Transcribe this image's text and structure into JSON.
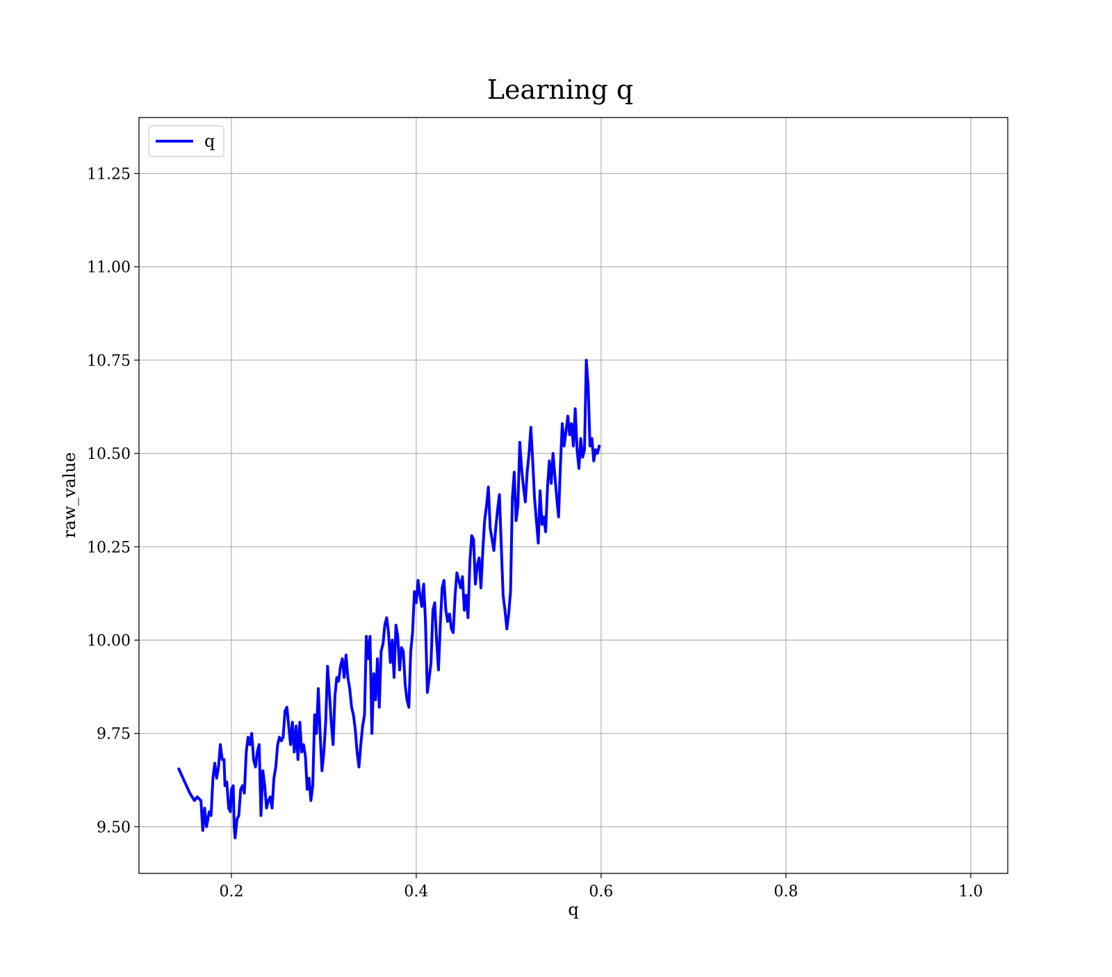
{
  "chart_data": {
    "type": "line",
    "title": "Learning q",
    "xlabel": "q",
    "ylabel": "raw_value",
    "xlim": [
      0.1,
      1.04
    ],
    "ylim": [
      9.375,
      11.4
    ],
    "x_ticks": [
      0.2,
      0.4,
      0.6,
      0.8,
      1.0
    ],
    "x_tick_labels": [
      "0.2",
      "0.4",
      "0.6",
      "0.8",
      "1.0"
    ],
    "y_ticks": [
      9.5,
      9.75,
      10.0,
      10.25,
      10.5,
      10.75,
      11.0,
      11.25
    ],
    "y_tick_labels": [
      "9.50",
      "9.75",
      "10.00",
      "10.25",
      "10.50",
      "10.75",
      "11.00",
      "11.25"
    ],
    "grid": true,
    "legend": {
      "position": "top-left",
      "entries": [
        "q"
      ]
    },
    "series": [
      {
        "name": "q",
        "color": "#0000ff",
        "points": [
          [
            0.143,
            9.655
          ],
          [
            0.155,
            9.59
          ],
          [
            0.16,
            9.57
          ],
          [
            0.163,
            9.58
          ],
          [
            0.167,
            9.57
          ],
          [
            0.169,
            9.49
          ],
          [
            0.171,
            9.55
          ],
          [
            0.173,
            9.5
          ],
          [
            0.176,
            9.54
          ],
          [
            0.178,
            9.53
          ],
          [
            0.18,
            9.63
          ],
          [
            0.182,
            9.67
          ],
          [
            0.184,
            9.63
          ],
          [
            0.186,
            9.66
          ],
          [
            0.188,
            9.72
          ],
          [
            0.19,
            9.68
          ],
          [
            0.192,
            9.68
          ],
          [
            0.193,
            9.61
          ],
          [
            0.195,
            9.62
          ],
          [
            0.197,
            9.55
          ],
          [
            0.199,
            9.54
          ],
          [
            0.2,
            9.6
          ],
          [
            0.202,
            9.61
          ],
          [
            0.203,
            9.5
          ],
          [
            0.204,
            9.47
          ],
          [
            0.206,
            9.52
          ],
          [
            0.208,
            9.53
          ],
          [
            0.21,
            9.6
          ],
          [
            0.212,
            9.61
          ],
          [
            0.214,
            9.59
          ],
          [
            0.216,
            9.7
          ],
          [
            0.218,
            9.74
          ],
          [
            0.22,
            9.72
          ],
          [
            0.222,
            9.75
          ],
          [
            0.224,
            9.68
          ],
          [
            0.226,
            9.66
          ],
          [
            0.228,
            9.7
          ],
          [
            0.23,
            9.72
          ],
          [
            0.232,
            9.53
          ],
          [
            0.234,
            9.65
          ],
          [
            0.236,
            9.61
          ],
          [
            0.238,
            9.55
          ],
          [
            0.24,
            9.57
          ],
          [
            0.242,
            9.58
          ],
          [
            0.244,
            9.55
          ],
          [
            0.246,
            9.63
          ],
          [
            0.248,
            9.66
          ],
          [
            0.25,
            9.72
          ],
          [
            0.252,
            9.74
          ],
          [
            0.254,
            9.73
          ],
          [
            0.256,
            9.74
          ],
          [
            0.258,
            9.81
          ],
          [
            0.26,
            9.82
          ],
          [
            0.262,
            9.77
          ],
          [
            0.264,
            9.72
          ],
          [
            0.266,
            9.78
          ],
          [
            0.268,
            9.7
          ],
          [
            0.27,
            9.77
          ],
          [
            0.272,
            9.68
          ],
          [
            0.274,
            9.78
          ],
          [
            0.276,
            9.7
          ],
          [
            0.278,
            9.72
          ],
          [
            0.28,
            9.69
          ],
          [
            0.282,
            9.6
          ],
          [
            0.284,
            9.63
          ],
          [
            0.286,
            9.57
          ],
          [
            0.288,
            9.61
          ],
          [
            0.29,
            9.8
          ],
          [
            0.292,
            9.75
          ],
          [
            0.294,
            9.87
          ],
          [
            0.296,
            9.75
          ],
          [
            0.298,
            9.65
          ],
          [
            0.3,
            9.7
          ],
          [
            0.302,
            9.78
          ],
          [
            0.304,
            9.93
          ],
          [
            0.306,
            9.86
          ],
          [
            0.308,
            9.78
          ],
          [
            0.31,
            9.72
          ],
          [
            0.312,
            9.85
          ],
          [
            0.314,
            9.9
          ],
          [
            0.316,
            9.89
          ],
          [
            0.318,
            9.93
          ],
          [
            0.32,
            9.95
          ],
          [
            0.322,
            9.9
          ],
          [
            0.324,
            9.96
          ],
          [
            0.326,
            9.9
          ],
          [
            0.328,
            9.87
          ],
          [
            0.33,
            9.82
          ],
          [
            0.332,
            9.8
          ],
          [
            0.334,
            9.76
          ],
          [
            0.336,
            9.7
          ],
          [
            0.338,
            9.66
          ],
          [
            0.34,
            9.72
          ],
          [
            0.342,
            9.77
          ],
          [
            0.344,
            9.8
          ],
          [
            0.346,
            10.01
          ],
          [
            0.348,
            9.95
          ],
          [
            0.35,
            10.01
          ],
          [
            0.352,
            9.75
          ],
          [
            0.354,
            9.91
          ],
          [
            0.356,
            9.84
          ],
          [
            0.358,
            9.95
          ],
          [
            0.36,
            9.82
          ],
          [
            0.362,
            9.97
          ],
          [
            0.364,
            9.99
          ],
          [
            0.366,
            10.04
          ],
          [
            0.368,
            10.06
          ],
          [
            0.37,
            10.02
          ],
          [
            0.372,
            9.94
          ],
          [
            0.374,
            10.0
          ],
          [
            0.376,
            9.9
          ],
          [
            0.378,
            10.04
          ],
          [
            0.38,
            10.01
          ],
          [
            0.382,
            9.92
          ],
          [
            0.384,
            9.98
          ],
          [
            0.386,
            9.97
          ],
          [
            0.388,
            9.88
          ],
          [
            0.39,
            9.84
          ],
          [
            0.392,
            9.82
          ],
          [
            0.394,
            9.97
          ],
          [
            0.396,
            10.02
          ],
          [
            0.398,
            10.13
          ],
          [
            0.4,
            10.1
          ],
          [
            0.402,
            10.16
          ],
          [
            0.404,
            10.12
          ],
          [
            0.406,
            10.09
          ],
          [
            0.408,
            10.15
          ],
          [
            0.41,
            10.05
          ],
          [
            0.412,
            9.86
          ],
          [
            0.414,
            9.9
          ],
          [
            0.416,
            9.94
          ],
          [
            0.418,
            10.08
          ],
          [
            0.42,
            10.1
          ],
          [
            0.422,
            10.0
          ],
          [
            0.424,
            9.92
          ],
          [
            0.426,
            10.04
          ],
          [
            0.428,
            10.14
          ],
          [
            0.43,
            10.16
          ],
          [
            0.432,
            10.08
          ],
          [
            0.434,
            10.05
          ],
          [
            0.436,
            10.07
          ],
          [
            0.438,
            10.03
          ],
          [
            0.44,
            10.02
          ],
          [
            0.442,
            10.12
          ],
          [
            0.444,
            10.18
          ],
          [
            0.446,
            10.16
          ],
          [
            0.448,
            10.14
          ],
          [
            0.45,
            10.17
          ],
          [
            0.452,
            10.08
          ],
          [
            0.454,
            10.12
          ],
          [
            0.456,
            10.06
          ],
          [
            0.458,
            10.21
          ],
          [
            0.46,
            10.28
          ],
          [
            0.462,
            10.27
          ],
          [
            0.464,
            10.15
          ],
          [
            0.466,
            10.2
          ],
          [
            0.468,
            10.22
          ],
          [
            0.47,
            10.14
          ],
          [
            0.472,
            10.24
          ],
          [
            0.474,
            10.32
          ],
          [
            0.476,
            10.36
          ],
          [
            0.478,
            10.41
          ],
          [
            0.48,
            10.3
          ],
          [
            0.482,
            10.27
          ],
          [
            0.484,
            10.24
          ],
          [
            0.486,
            10.3
          ],
          [
            0.488,
            10.35
          ],
          [
            0.49,
            10.39
          ],
          [
            0.492,
            10.25
          ],
          [
            0.494,
            10.12
          ],
          [
            0.496,
            10.08
          ],
          [
            0.498,
            10.03
          ],
          [
            0.5,
            10.07
          ],
          [
            0.502,
            10.13
          ],
          [
            0.504,
            10.38
          ],
          [
            0.506,
            10.45
          ],
          [
            0.508,
            10.32
          ],
          [
            0.51,
            10.36
          ],
          [
            0.512,
            10.53
          ],
          [
            0.514,
            10.46
          ],
          [
            0.516,
            10.41
          ],
          [
            0.518,
            10.37
          ],
          [
            0.52,
            10.45
          ],
          [
            0.522,
            10.5
          ],
          [
            0.524,
            10.57
          ],
          [
            0.526,
            10.48
          ],
          [
            0.528,
            10.38
          ],
          [
            0.53,
            10.32
          ],
          [
            0.532,
            10.26
          ],
          [
            0.534,
            10.4
          ],
          [
            0.536,
            10.31
          ],
          [
            0.538,
            10.33
          ],
          [
            0.54,
            10.29
          ],
          [
            0.542,
            10.41
          ],
          [
            0.544,
            10.48
          ],
          [
            0.546,
            10.42
          ],
          [
            0.548,
            10.5
          ],
          [
            0.55,
            10.44
          ],
          [
            0.552,
            10.38
          ],
          [
            0.554,
            10.33
          ],
          [
            0.556,
            10.47
          ],
          [
            0.558,
            10.58
          ],
          [
            0.56,
            10.52
          ],
          [
            0.562,
            10.56
          ],
          [
            0.564,
            10.6
          ],
          [
            0.566,
            10.55
          ],
          [
            0.568,
            10.58
          ],
          [
            0.57,
            10.52
          ],
          [
            0.572,
            10.62
          ],
          [
            0.574,
            10.51
          ],
          [
            0.576,
            10.46
          ],
          [
            0.578,
            10.54
          ],
          [
            0.58,
            10.49
          ],
          [
            0.582,
            10.51
          ],
          [
            0.584,
            10.75
          ],
          [
            0.586,
            10.68
          ],
          [
            0.588,
            10.52
          ],
          [
            0.59,
            10.54
          ],
          [
            0.592,
            10.48
          ],
          [
            0.594,
            10.51
          ],
          [
            0.596,
            10.5
          ],
          [
            0.598,
            10.52
          ]
        ]
      }
    ]
  }
}
